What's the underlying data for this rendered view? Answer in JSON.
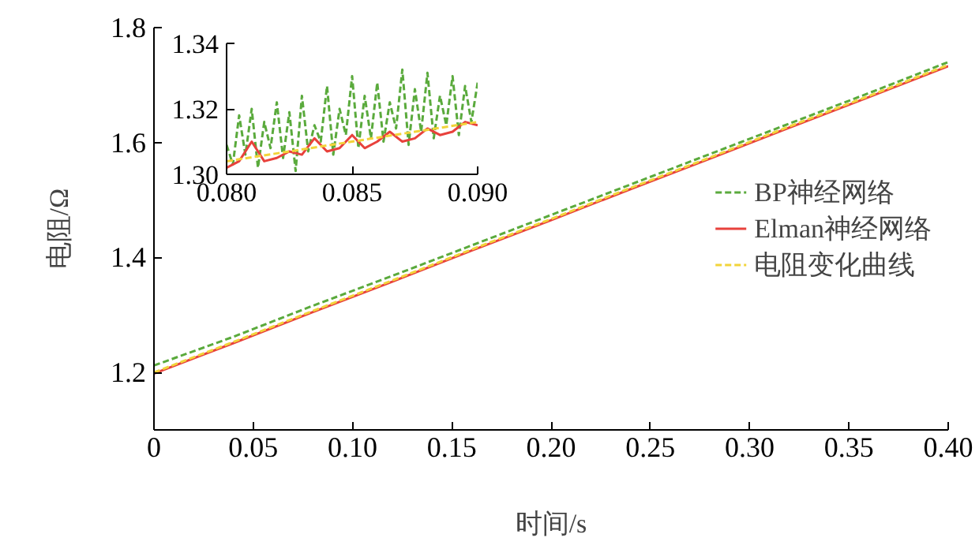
{
  "chart_data": [
    {
      "type": "line",
      "xlabel": "时间/s",
      "ylabel": "电阻/Ω",
      "xlim": [
        0,
        0.4
      ],
      "ylim": [
        1.1,
        1.8
      ],
      "xticks": [
        0,
        0.05,
        {
          "value": 0.1,
          "label": "0.10"
        },
        0.15,
        {
          "value": 0.2,
          "label": "0.20"
        },
        0.25,
        {
          "value": 0.3,
          "label": "0.30"
        },
        0.35,
        {
          "value": 0.4,
          "label": "0.40"
        }
      ],
      "yticks": [
        1.2,
        1.4,
        1.6,
        1.8
      ],
      "legend": "right",
      "x": [
        0,
        0.04,
        0.08,
        0.12,
        0.16,
        0.2,
        0.24,
        0.28,
        0.32,
        0.36,
        0.4
      ],
      "series": [
        {
          "name": "BP神经网络",
          "color": "#5aaa3c",
          "line_style": "dashed",
          "values": [
            1.212,
            1.262,
            1.316,
            1.368,
            1.421,
            1.474,
            1.527,
            1.58,
            1.633,
            1.686,
            1.74
          ]
        },
        {
          "name": "Elman神经网络",
          "color": "#e8413c",
          "line_style": "solid",
          "values": [
            1.198,
            1.251,
            1.305,
            1.358,
            1.412,
            1.465,
            1.519,
            1.572,
            1.626,
            1.679,
            1.733
          ]
        },
        {
          "name": "电阻变化曲线",
          "color": "#f2d43a",
          "line_style": "dashed",
          "values": [
            1.2,
            1.253,
            1.307,
            1.36,
            1.414,
            1.467,
            1.521,
            1.574,
            1.628,
            1.681,
            1.735
          ]
        }
      ]
    },
    {
      "type": "line",
      "xlim": [
        0.08,
        0.09
      ],
      "ylim": [
        1.3,
        1.34
      ],
      "xticks": [
        {
          "value": 0.08,
          "label": "0.080"
        },
        0.085,
        {
          "value": 0.09,
          "label": "0.090"
        }
      ],
      "yticks": [
        {
          "value": 1.3,
          "label": "1.30"
        },
        1.32,
        1.34
      ],
      "series": [
        {
          "color": "#5aaa3c",
          "line_style": "dashed",
          "x": [
            0.08,
            0.08025,
            0.0805,
            0.08075,
            0.081,
            0.08125,
            0.0815,
            0.08175,
            0.082,
            0.08225,
            0.0825,
            0.08275,
            0.083,
            0.08325,
            0.0835,
            0.08375,
            0.084,
            0.08425,
            0.0845,
            0.08475,
            0.085,
            0.08525,
            0.0855,
            0.08575,
            0.086,
            0.08625,
            0.0865,
            0.08675,
            0.087,
            0.08725,
            0.0875,
            0.08775,
            0.088,
            0.08825,
            0.0885,
            0.08875,
            0.089,
            0.08925,
            0.0895,
            0.08975,
            0.09
          ],
          "values": [
            1.309,
            1.303,
            1.318,
            1.306,
            1.32,
            1.302,
            1.316,
            1.308,
            1.322,
            1.305,
            1.319,
            1.301,
            1.324,
            1.307,
            1.315,
            1.31,
            1.327,
            1.306,
            1.32,
            1.312,
            1.33,
            1.308,
            1.324,
            1.311,
            1.328,
            1.31,
            1.322,
            1.314,
            1.332,
            1.309,
            1.326,
            1.313,
            1.331,
            1.311,
            1.324,
            1.315,
            1.33,
            1.312,
            1.327,
            1.316,
            1.328
          ]
        },
        {
          "color": "#e8413c",
          "line_style": "solid",
          "x": [
            0.08,
            0.0805,
            0.081,
            0.0815,
            0.082,
            0.0825,
            0.083,
            0.0835,
            0.084,
            0.0845,
            0.085,
            0.0855,
            0.086,
            0.0865,
            0.087,
            0.0875,
            0.088,
            0.0885,
            0.089,
            0.0895,
            0.09
          ],
          "values": [
            1.302,
            1.304,
            1.31,
            1.304,
            1.305,
            1.307,
            1.306,
            1.311,
            1.307,
            1.308,
            1.312,
            1.308,
            1.31,
            1.313,
            1.31,
            1.311,
            1.314,
            1.312,
            1.313,
            1.316,
            1.315
          ]
        },
        {
          "color": "#f2d43a",
          "line_style": "dashed",
          "x": [
            0.08,
            0.09
          ],
          "values": [
            1.304,
            1.316
          ]
        }
      ]
    }
  ]
}
